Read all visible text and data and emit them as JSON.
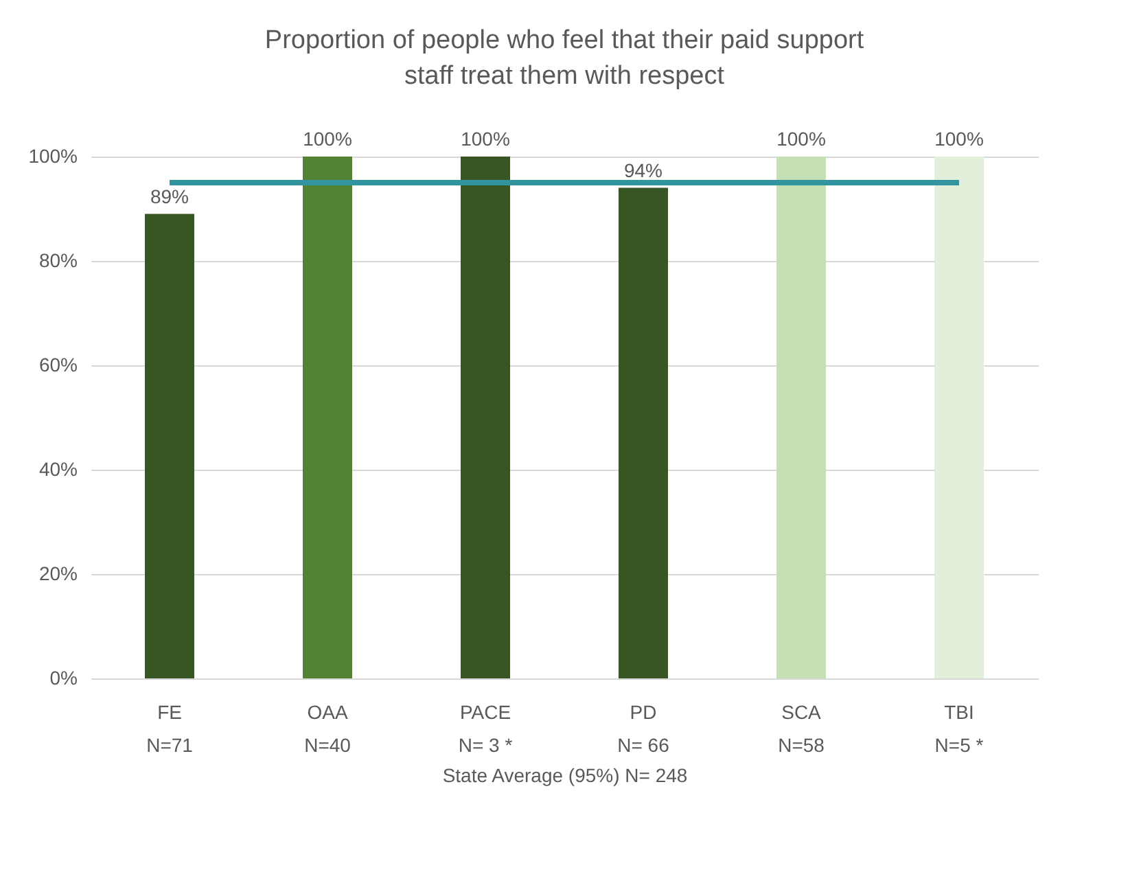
{
  "chart_data": {
    "type": "bar",
    "title": "Proportion of people who feel that their paid support staff treat them with respect",
    "categories": [
      "FE\nN=71",
      "OAA\nN=40",
      "PACE\nN= 3 *",
      "PD\nN= 66",
      "SCA\nN=58",
      "TBI\nN=5 *"
    ],
    "values": [
      89,
      100,
      100,
      94,
      100,
      100
    ],
    "colors": [
      "#375623",
      "#548235",
      "#375623",
      "#375623",
      "#c5e0b4",
      "#e2efda"
    ],
    "value_labels": [
      "89%",
      "100%",
      "100%",
      "94%",
      "100%",
      "100%"
    ],
    "xlabel": "State Average (95%) N= 248",
    "ylim": [
      0,
      100
    ],
    "yticks": [
      {
        "value": 0,
        "label": "0%"
      },
      {
        "value": 20,
        "label": "20%"
      },
      {
        "value": 40,
        "label": "40%"
      },
      {
        "value": 60,
        "label": "60%"
      },
      {
        "value": 80,
        "label": "80%"
      },
      {
        "value": 100,
        "label": "100%"
      }
    ],
    "grid": "y",
    "ref_lines": [
      {
        "axis": "y",
        "value": 95,
        "color": "#31949e"
      }
    ]
  }
}
